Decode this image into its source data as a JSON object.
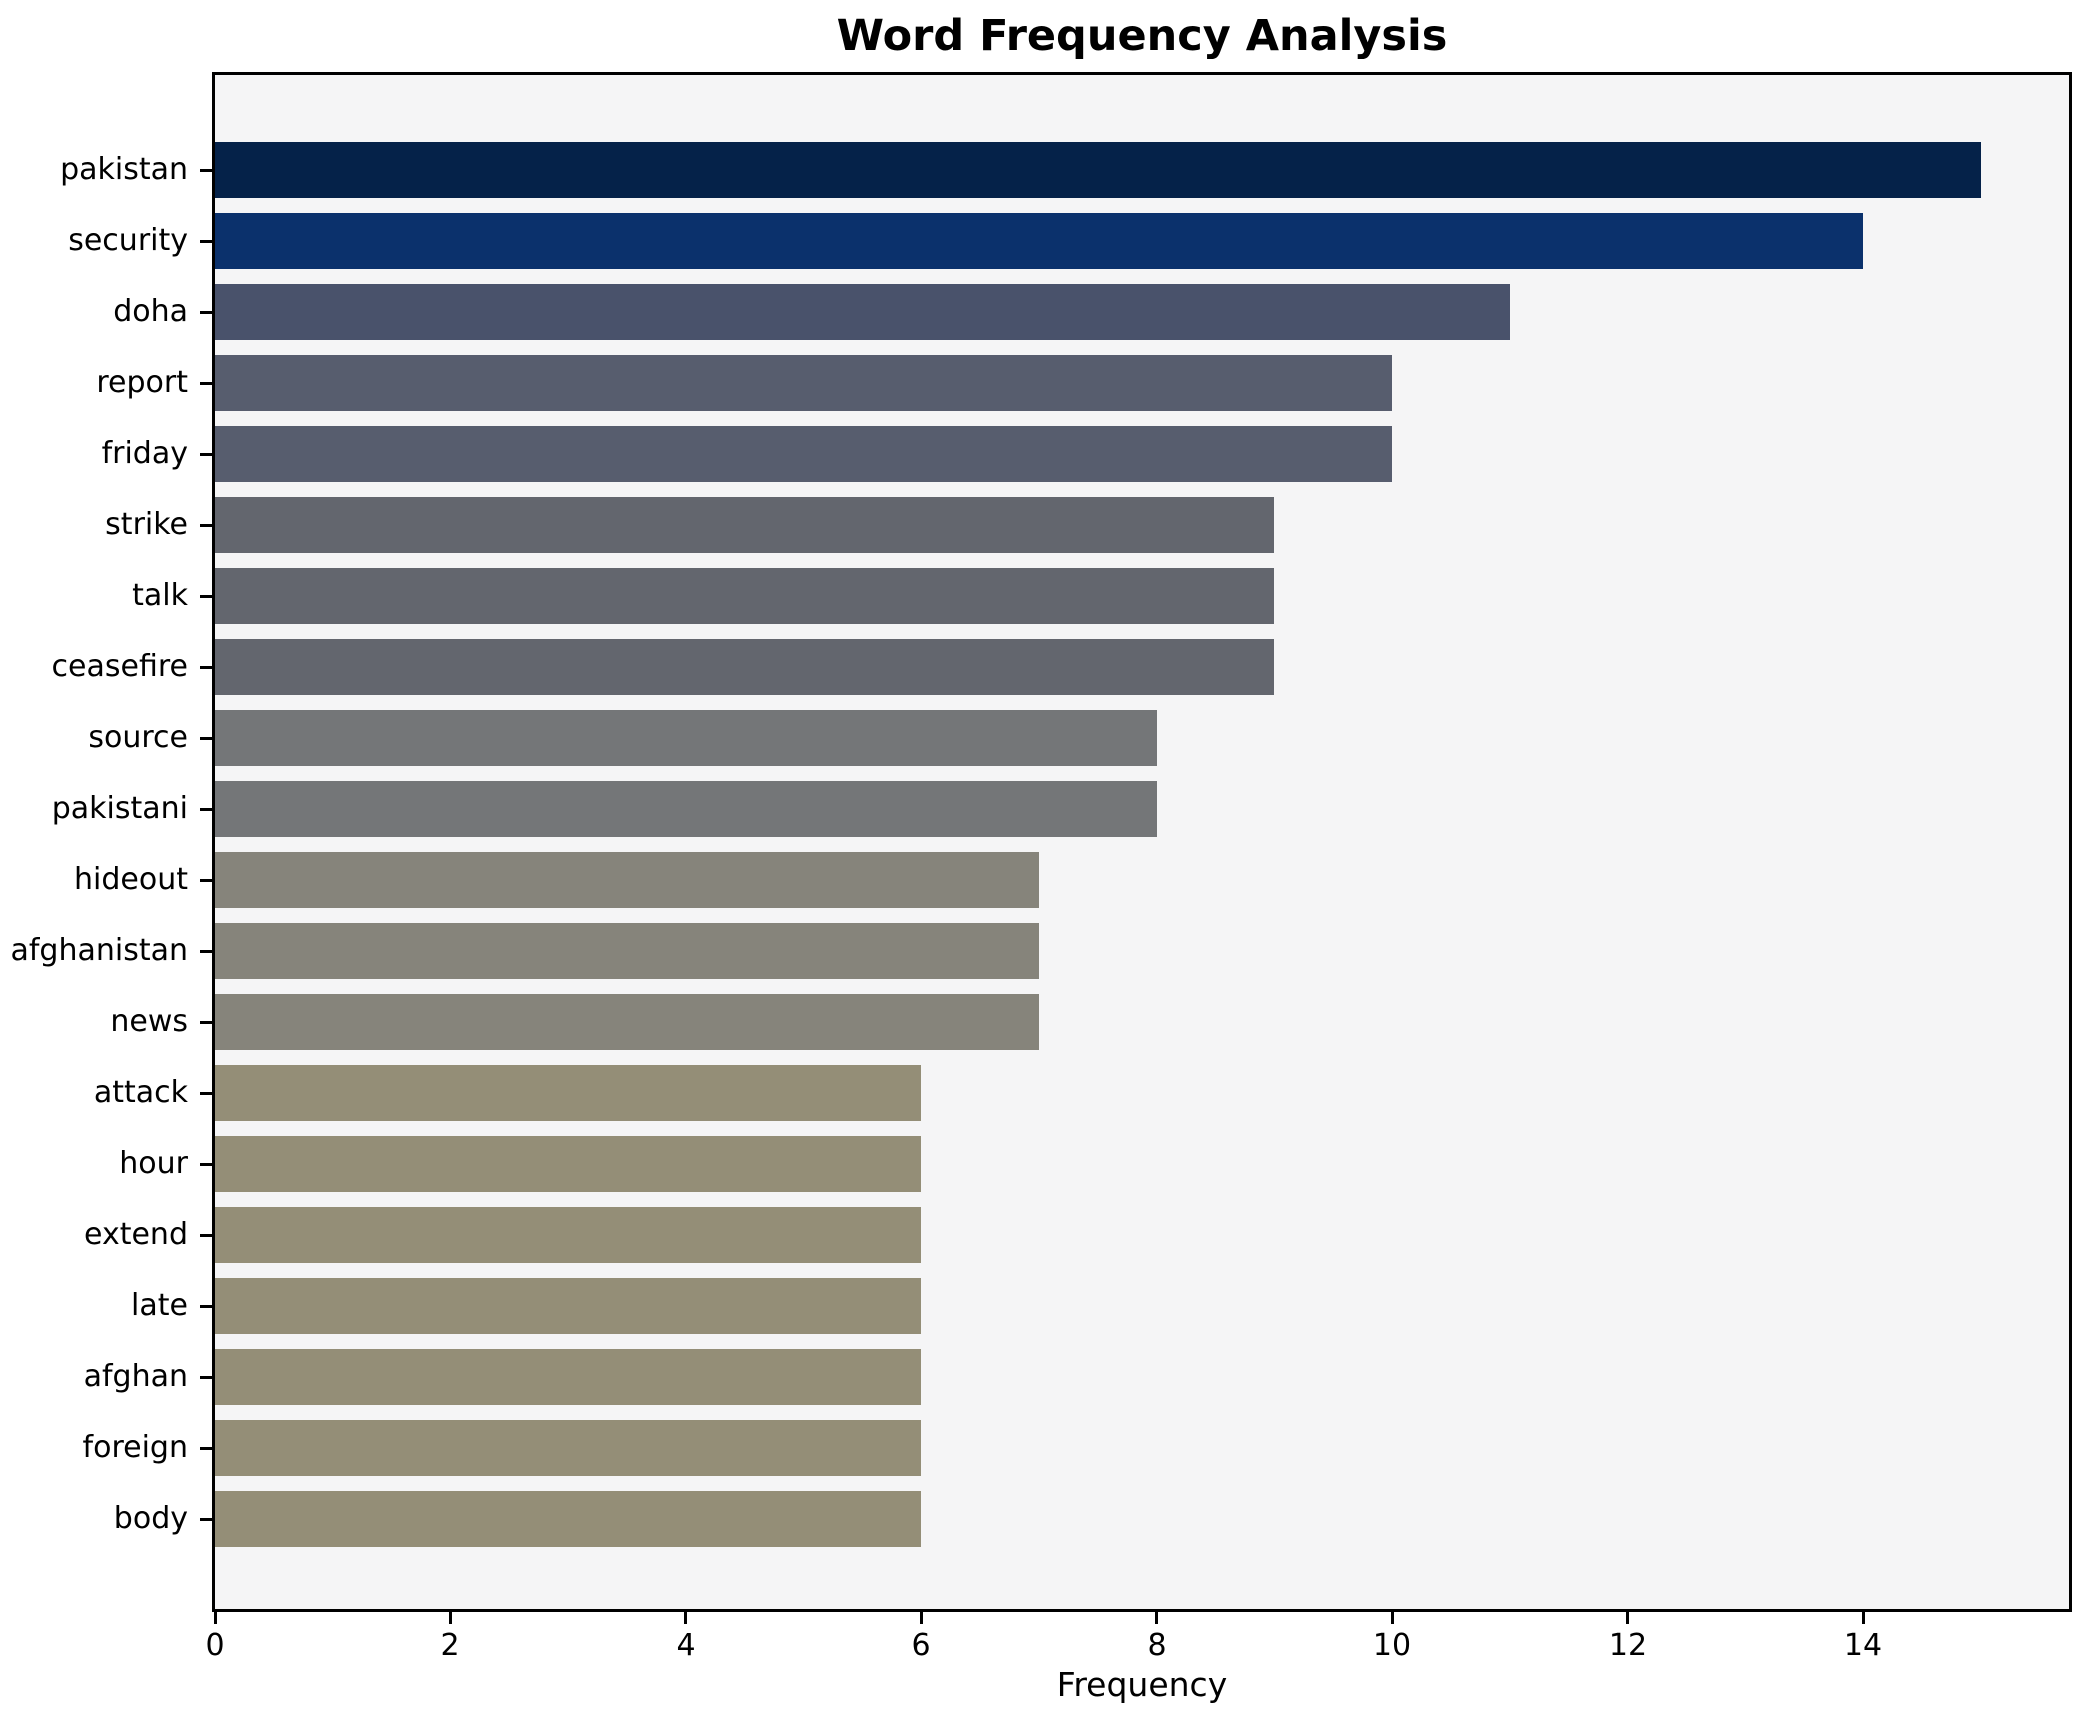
{
  "chart_data": {
    "type": "bar",
    "orientation": "horizontal",
    "title": "Word Frequency Analysis",
    "xlabel": "Frequency",
    "ylabel": "",
    "categories": [
      "pakistan",
      "security",
      "doha",
      "report",
      "friday",
      "strike",
      "talk",
      "ceasefire",
      "source",
      "pakistani",
      "hideout",
      "afghanistan",
      "news",
      "attack",
      "hour",
      "extend",
      "late",
      "afghan",
      "foreign",
      "body"
    ],
    "values": [
      15,
      14,
      11,
      10,
      10,
      9,
      9,
      9,
      8,
      8,
      7,
      7,
      7,
      6,
      6,
      6,
      6,
      6,
      6,
      6
    ],
    "bar_colors": [
      "#052249",
      "#0b316c",
      "#49526b",
      "#575d6e",
      "#575d6e",
      "#63666e",
      "#63666e",
      "#63666e",
      "#747678",
      "#747678",
      "#86847b",
      "#86847b",
      "#86847b",
      "#948e77",
      "#948e77",
      "#948e77",
      "#948e77",
      "#948e77",
      "#948e77",
      "#948e77"
    ],
    "xlim": [
      0,
      15.75
    ],
    "x_ticks": [
      0,
      2,
      4,
      6,
      8,
      10,
      12,
      14
    ],
    "grid": false,
    "legend": "none",
    "colors": {
      "figure_bg": "#ffffff",
      "plot_bg": "#f5f5f6",
      "spine": "#000000",
      "text": "#000000"
    }
  }
}
